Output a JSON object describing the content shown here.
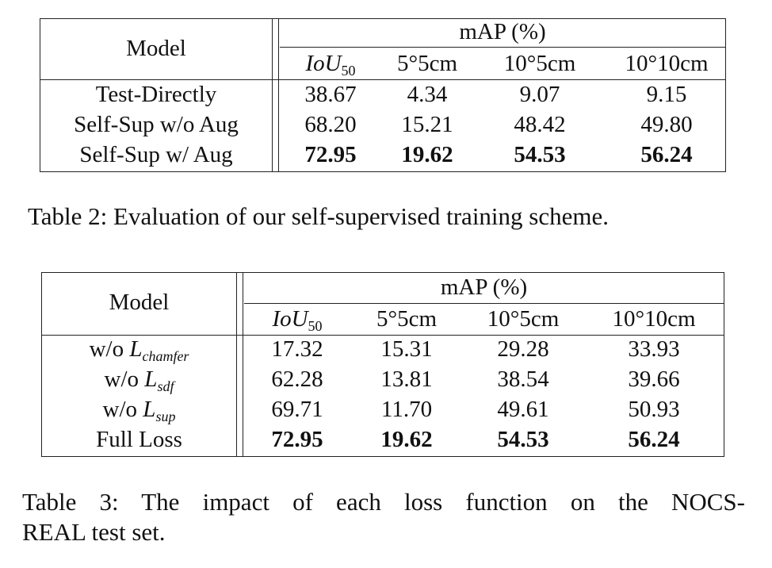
{
  "table2": {
    "header": {
      "model": "Model",
      "group": "mAP (%)",
      "columns": [
        {
          "base": "IoU",
          "sub": "50"
        },
        {
          "text": "5°5cm"
        },
        {
          "text": "10°5cm"
        },
        {
          "text": "10°10cm"
        }
      ]
    },
    "rows": [
      {
        "model": "Test-Directly",
        "values": [
          "38.67",
          "4.34",
          "9.07",
          "9.15"
        ],
        "bold": false
      },
      {
        "model": "Self-Sup w/o Aug",
        "values": [
          "68.20",
          "15.21",
          "48.42",
          "49.80"
        ],
        "bold": false
      },
      {
        "model": "Self-Sup w/ Aug",
        "values": [
          "72.95",
          "19.62",
          "54.53",
          "56.24"
        ],
        "bold": true
      }
    ],
    "caption": "Table 2: Evaluation of our self-supervised training scheme."
  },
  "table3": {
    "header": {
      "model": "Model",
      "group": "mAP (%)",
      "columns": [
        {
          "base": "IoU",
          "sub": "50"
        },
        {
          "text": "5°5cm"
        },
        {
          "text": "10°5cm"
        },
        {
          "text": "10°10cm"
        }
      ]
    },
    "rows": [
      {
        "prefix": "w/o ",
        "sym": "L",
        "sub": "chamfer",
        "values": [
          "17.32",
          "15.31",
          "29.28",
          "33.93"
        ],
        "bold": false
      },
      {
        "prefix": "w/o ",
        "sym": "L",
        "sub": "sdf",
        "values": [
          "62.28",
          "13.81",
          "38.54",
          "39.66"
        ],
        "bold": false
      },
      {
        "prefix": "w/o ",
        "sym": "L",
        "sub": "sup",
        "values": [
          "69.71",
          "11.70",
          "49.61",
          "50.93"
        ],
        "bold": false
      },
      {
        "model": "Full Loss",
        "values": [
          "72.95",
          "19.62",
          "54.53",
          "56.24"
        ],
        "bold": true
      }
    ],
    "caption_line1": "Table 3: The impact of each loss function on the NOCS-",
    "caption_line2": "REAL test set."
  }
}
